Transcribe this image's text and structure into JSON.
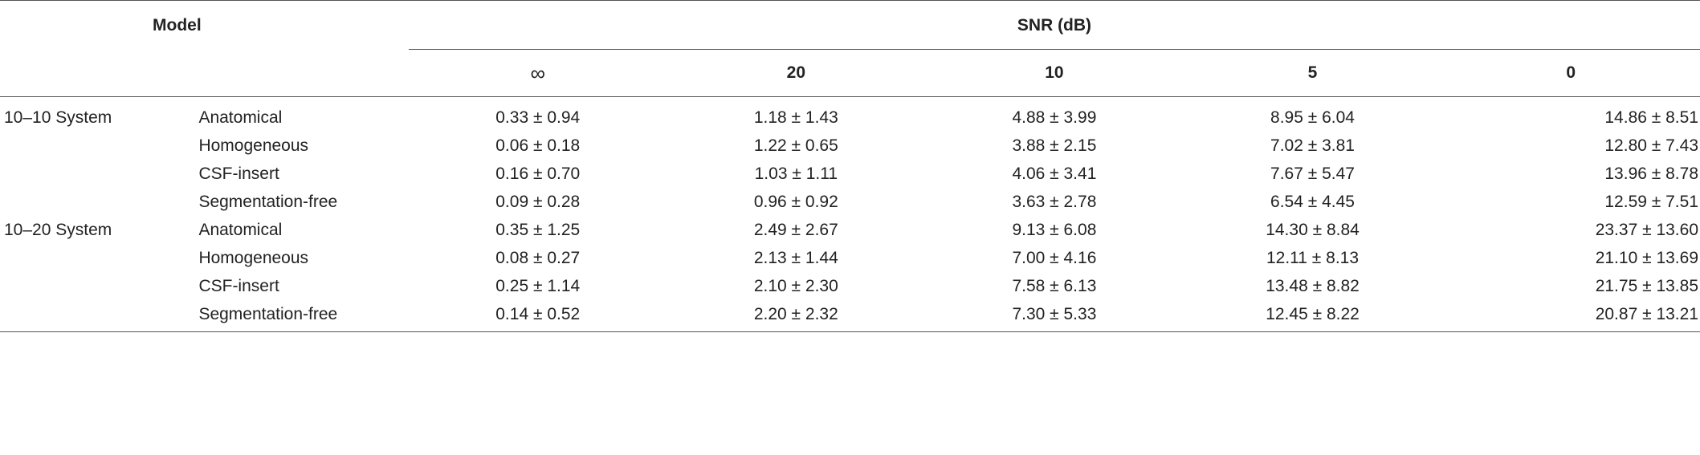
{
  "header": {
    "model_label": "Model",
    "snr_label": "SNR (dB)",
    "snr_columns": [
      "∞",
      "20",
      "10",
      "5",
      "0"
    ]
  },
  "groups": [
    {
      "name": "10–10 System",
      "rows": [
        {
          "model": "Anatomical",
          "values": [
            "0.33 ± 0.94",
            "1.18 ± 1.43",
            "4.88 ± 3.99",
            "8.95 ± 6.04",
            "14.86 ± 8.51"
          ]
        },
        {
          "model": "Homogeneous",
          "values": [
            "0.06 ± 0.18",
            "1.22 ± 0.65",
            "3.88 ± 2.15",
            "7.02 ± 3.81",
            "12.80 ± 7.43"
          ]
        },
        {
          "model": "CSF-insert",
          "values": [
            "0.16 ± 0.70",
            "1.03 ± 1.11",
            "4.06 ± 3.41",
            "7.67 ± 5.47",
            "13.96 ± 8.78"
          ]
        },
        {
          "model": "Segmentation-free",
          "values": [
            "0.09 ± 0.28",
            "0.96 ± 0.92",
            "3.63 ± 2.78",
            "6.54 ± 4.45",
            "12.59 ± 7.51"
          ]
        }
      ]
    },
    {
      "name": "10–20 System",
      "rows": [
        {
          "model": "Anatomical",
          "values": [
            "0.35 ± 1.25",
            "2.49 ± 2.67",
            "9.13 ± 6.08",
            "14.30 ± 8.84",
            "23.37 ± 13.60"
          ]
        },
        {
          "model": "Homogeneous",
          "values": [
            "0.08 ± 0.27",
            "2.13 ± 1.44",
            "7.00 ± 4.16",
            "12.11 ± 8.13",
            "21.10 ± 13.69"
          ]
        },
        {
          "model": "CSF-insert",
          "values": [
            "0.25 ± 1.14",
            "2.10 ± 2.30",
            "7.58 ± 6.13",
            "13.48 ± 8.82",
            "21.75 ± 13.85"
          ]
        },
        {
          "model": "Segmentation-free",
          "values": [
            "0.14 ± 0.52",
            "2.20 ± 2.32",
            "7.30 ± 5.33",
            "12.45 ± 8.22",
            "20.87 ± 13.21"
          ]
        }
      ]
    }
  ]
}
